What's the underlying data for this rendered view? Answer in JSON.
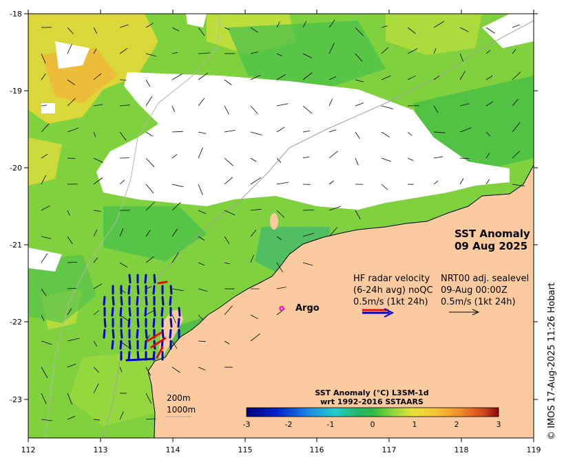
{
  "map": {
    "title": "SST Anomaly",
    "date": "09 Aug 2025",
    "lat_ticks": [
      "-18",
      "-19",
      "-20",
      "-21",
      "-22",
      "-23"
    ],
    "lon_ticks": [
      "112",
      "113",
      "114",
      "115",
      "116",
      "117",
      "118",
      "119"
    ],
    "extent": {
      "lon": [
        112,
        119
      ],
      "lat": [
        -23.5,
        -18
      ]
    }
  },
  "legend_hf": {
    "line1": "HF radar velocity",
    "line2": "(6-24h avg) noQC",
    "line3": "0.5m/s (1kt 24h)"
  },
  "legend_nrt": {
    "line1": "NRT00 adj. sealevel",
    "line2": "09-Aug 00:00Z",
    "line3": "0.5m/s (1kt 24h)"
  },
  "argo": {
    "marker": "o",
    "label": "Argo",
    "lon": 115.5,
    "lat": -21.75
  },
  "isobaths": {
    "a": "200m",
    "b": "1000m"
  },
  "colorbar": {
    "title1": "SST Anomaly (°C) L3SM-1d",
    "title2": "wrt 1992-2016 SSTAARS",
    "ticks": [
      "-3",
      "-2",
      "-1",
      "0",
      "1",
      "2",
      "3"
    ],
    "range": [
      -3,
      3
    ]
  },
  "credit": "© IMOS 17-Aug-2025 11:26 Hobart",
  "colors": {
    "land": "#fbcb9f",
    "cloud": "#ffffff",
    "anomaly_zero": "#2fb84a",
    "anomaly_warm": "#f5d23a",
    "hf_radar": "#0000cc",
    "hf_radar_alt": "#e01010",
    "argo": "#ff00cc"
  }
}
